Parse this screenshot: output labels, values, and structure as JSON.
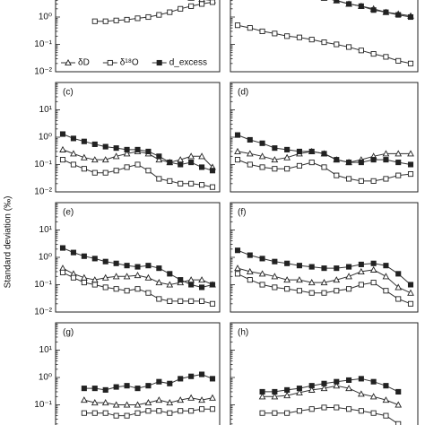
{
  "chart_data": [
    {
      "type": "line",
      "ylabel": "Standard deviation (‰)",
      "legend": true,
      "log_y": true,
      "ylim": [
        0.01,
        100
      ],
      "yticks": [
        {
          "value": 0.01,
          "label": "10⁻²"
        },
        {
          "value": 0.1,
          "label": "10⁻¹"
        },
        {
          "value": 1,
          "label": "10⁰"
        }
      ],
      "categories": [
        null,
        null,
        null,
        null,
        null,
        null,
        null,
        null,
        null,
        null,
        null,
        null,
        null,
        null,
        null
      ],
      "series": [
        {
          "name": "δD",
          "color": "#222",
          "marker": "triangle",
          "values": [
            null,
            null,
            null,
            null,
            null,
            null,
            null,
            null,
            null,
            null,
            null,
            null,
            5,
            4.5,
            4
          ]
        },
        {
          "name": "δ¹⁸O",
          "color": "#222",
          "marker": "open-square",
          "values": [
            null,
            null,
            null,
            0.7,
            0.7,
            0.75,
            0.8,
            0.9,
            1,
            1.2,
            1.5,
            2,
            2.5,
            3,
            3.5
          ]
        },
        {
          "name": "d_excess",
          "color": "#222",
          "marker": "filled-square",
          "values": [
            null,
            null,
            null,
            null,
            null,
            null,
            null,
            null,
            null,
            null,
            null,
            null,
            null,
            null,
            null
          ]
        }
      ]
    },
    {
      "type": "line",
      "log_y": true,
      "ylim": [
        0.01,
        100
      ],
      "yticks": [
        0.01,
        0.1,
        1
      ],
      "categories": [
        null,
        null,
        null,
        null,
        null,
        null,
        null,
        null,
        null,
        null,
        null,
        null,
        null,
        null,
        null
      ],
      "series": [
        {
          "name": "δD",
          "color": "#222",
          "marker": "triangle",
          "values": [
            null,
            null,
            null,
            null,
            null,
            null,
            8,
            5,
            4,
            3,
            2.5,
            2,
            1.5,
            1.3,
            1.1
          ]
        },
        {
          "name": "δ¹⁸O",
          "color": "#222",
          "marker": "open-square",
          "values": [
            0.5,
            0.4,
            0.3,
            0.25,
            0.2,
            0.18,
            0.15,
            0.12,
            0.1,
            0.08,
            0.06,
            0.045,
            0.035,
            0.025,
            0.02
          ]
        },
        {
          "name": "d_excess",
          "color": "#222",
          "marker": "filled-square",
          "values": [
            null,
            null,
            null,
            null,
            null,
            null,
            7,
            5,
            4,
            3,
            2.5,
            1.8,
            1.5,
            1.2,
            1
          ]
        }
      ]
    },
    {
      "type": "line",
      "label": "(c)",
      "log_y": true,
      "ylim": [
        0.01,
        100
      ],
      "yticks": [
        {
          "value": 0.01,
          "label": "10⁻²"
        },
        {
          "value": 0.1,
          "label": "10⁻¹"
        },
        {
          "value": 1,
          "label": "10⁰"
        },
        {
          "value": 10,
          "label": "10¹"
        }
      ],
      "categories": [
        null,
        null,
        null,
        null,
        null,
        null,
        null,
        null,
        null,
        null,
        null,
        null,
        null,
        null,
        null
      ],
      "series": [
        {
          "name": "δD",
          "color": "#222",
          "marker": "triangle",
          "values": [
            0.35,
            0.25,
            0.18,
            0.15,
            0.15,
            0.2,
            0.25,
            0.3,
            0.25,
            0.15,
            0.12,
            0.15,
            0.2,
            0.2,
            0.08
          ]
        },
        {
          "name": "δ¹⁸O",
          "color": "#222",
          "marker": "open-square",
          "values": [
            0.15,
            0.1,
            0.07,
            0.05,
            0.05,
            0.06,
            0.08,
            0.1,
            0.06,
            0.03,
            0.025,
            0.02,
            0.02,
            0.018,
            0.015
          ]
        },
        {
          "name": "d_excess",
          "color": "#222",
          "marker": "filled-square",
          "values": [
            1.3,
            0.9,
            0.7,
            0.55,
            0.45,
            0.4,
            0.35,
            0.35,
            0.3,
            0.2,
            0.12,
            0.1,
            0.12,
            0.08,
            0.06
          ]
        }
      ]
    },
    {
      "type": "line",
      "label": "(d)",
      "log_y": true,
      "ylim": [
        0.01,
        100
      ],
      "yticks": [
        0.01,
        0.1,
        1,
        10
      ],
      "categories": [
        null,
        null,
        null,
        null,
        null,
        null,
        null,
        null,
        null,
        null,
        null,
        null,
        null,
        null,
        null
      ],
      "series": [
        {
          "name": "δD",
          "color": "#222",
          "marker": "triangle",
          "values": [
            0.3,
            0.25,
            0.2,
            0.15,
            0.18,
            0.25,
            0.3,
            0.25,
            0.15,
            0.12,
            0.15,
            0.2,
            0.25,
            0.25,
            0.25
          ]
        },
        {
          "name": "δ¹⁸O",
          "color": "#222",
          "marker": "open-square",
          "values": [
            0.15,
            0.1,
            0.08,
            0.07,
            0.07,
            0.09,
            0.12,
            0.08,
            0.04,
            0.03,
            0.025,
            0.025,
            0.03,
            0.04,
            0.045
          ]
        },
        {
          "name": "d_excess",
          "color": "#222",
          "marker": "filled-square",
          "values": [
            1.2,
            0.8,
            0.6,
            0.4,
            0.35,
            0.3,
            0.3,
            0.25,
            0.15,
            0.12,
            0.12,
            0.15,
            0.15,
            0.12,
            0.1
          ]
        }
      ]
    },
    {
      "type": "line",
      "label": "(e)",
      "log_y": true,
      "ylim": [
        0.01,
        100
      ],
      "yticks": [
        {
          "value": 0.01,
          "label": "10⁻²"
        },
        {
          "value": 0.1,
          "label": "10⁻¹"
        },
        {
          "value": 1,
          "label": "10⁰"
        },
        {
          "value": 10,
          "label": "10¹"
        }
      ],
      "categories": [
        null,
        null,
        null,
        null,
        null,
        null,
        null,
        null,
        null,
        null,
        null,
        null,
        null,
        null,
        null
      ],
      "series": [
        {
          "name": "δD",
          "color": "#222",
          "marker": "triangle",
          "values": [
            0.4,
            0.25,
            0.18,
            0.15,
            0.18,
            0.2,
            0.2,
            0.22,
            0.18,
            0.12,
            0.1,
            0.12,
            0.15,
            0.15,
            0.1
          ]
        },
        {
          "name": "δ¹⁸O",
          "color": "#222",
          "marker": "open-square",
          "values": [
            0.28,
            0.18,
            0.12,
            0.1,
            0.08,
            0.07,
            0.06,
            0.07,
            0.05,
            0.03,
            0.025,
            0.025,
            0.025,
            0.025,
            0.02
          ]
        },
        {
          "name": "d_excess",
          "color": "#222",
          "marker": "filled-square",
          "values": [
            2.2,
            1.5,
            1.1,
            0.9,
            0.7,
            0.6,
            0.5,
            0.45,
            0.5,
            0.4,
            0.25,
            0.15,
            0.1,
            0.08,
            0.1
          ]
        }
      ]
    },
    {
      "type": "line",
      "label": "(f)",
      "log_y": true,
      "ylim": [
        0.01,
        100
      ],
      "yticks": [
        0.01,
        0.1,
        1,
        10
      ],
      "categories": [
        null,
        null,
        null,
        null,
        null,
        null,
        null,
        null,
        null,
        null,
        null,
        null,
        null,
        null,
        null
      ],
      "series": [
        {
          "name": "δD",
          "color": "#222",
          "marker": "triangle",
          "values": [
            0.4,
            0.3,
            0.25,
            0.2,
            0.15,
            0.15,
            0.12,
            0.12,
            0.15,
            0.2,
            0.3,
            0.35,
            0.2,
            0.08,
            0.05
          ]
        },
        {
          "name": "δ¹⁸O",
          "color": "#222",
          "marker": "open-square",
          "values": [
            0.25,
            0.15,
            0.1,
            0.08,
            0.07,
            0.06,
            0.05,
            0.05,
            0.06,
            0.07,
            0.1,
            0.12,
            0.06,
            0.03,
            0.02
          ]
        },
        {
          "name": "d_excess",
          "color": "#222",
          "marker": "filled-square",
          "values": [
            1.8,
            1.2,
            0.9,
            0.7,
            0.6,
            0.5,
            0.45,
            0.4,
            0.4,
            0.45,
            0.55,
            0.6,
            0.5,
            0.25,
            0.1
          ]
        }
      ]
    },
    {
      "type": "line",
      "label": "(g)",
      "log_y": true,
      "ylim": [
        0.01,
        100
      ],
      "yticks": [
        {
          "value": 0.1,
          "label": "10⁻¹"
        },
        {
          "value": 1,
          "label": "10⁰"
        },
        {
          "value": 10,
          "label": "10¹"
        }
      ],
      "categories": [
        null,
        null,
        null,
        null,
        null,
        null,
        null,
        null,
        null,
        null,
        null,
        null,
        null,
        null,
        null
      ],
      "series": [
        {
          "name": "δD",
          "color": "#222",
          "marker": "triangle",
          "values": [
            null,
            null,
            0.15,
            0.12,
            0.12,
            0.1,
            0.1,
            0.1,
            0.12,
            0.15,
            0.12,
            0.15,
            0.18,
            0.15,
            0.18
          ]
        },
        {
          "name": "δ¹⁸O",
          "color": "#222",
          "marker": "open-square",
          "values": [
            null,
            null,
            0.05,
            0.05,
            0.05,
            0.04,
            0.04,
            0.05,
            0.06,
            0.06,
            0.05,
            0.06,
            0.06,
            0.07,
            0.07
          ]
        },
        {
          "name": "d_excess",
          "color": "#222",
          "marker": "filled-square",
          "values": [
            null,
            null,
            0.4,
            0.4,
            0.35,
            0.45,
            0.5,
            0.4,
            0.5,
            0.7,
            0.6,
            0.9,
            1.1,
            1.3,
            0.9
          ]
        }
      ]
    },
    {
      "type": "line",
      "label": "(h)",
      "log_y": true,
      "ylim": [
        0.01,
        100
      ],
      "yticks": [
        0.1,
        1,
        10
      ],
      "categories": [
        null,
        null,
        null,
        null,
        null,
        null,
        null,
        null,
        null,
        null,
        null,
        null,
        null,
        null,
        null
      ],
      "series": [
        {
          "name": "δD",
          "color": "#222",
          "marker": "triangle",
          "values": [
            null,
            null,
            0.2,
            0.2,
            0.22,
            0.28,
            0.35,
            0.4,
            0.5,
            0.4,
            0.25,
            0.2,
            0.15,
            0.1,
            null
          ]
        },
        {
          "name": "δ¹⁸O",
          "color": "#222",
          "marker": "open-square",
          "values": [
            null,
            null,
            0.05,
            0.05,
            0.05,
            0.06,
            0.07,
            0.08,
            0.08,
            0.07,
            0.06,
            0.05,
            0.04,
            0.02,
            null
          ]
        },
        {
          "name": "d_excess",
          "color": "#222",
          "marker": "filled-square",
          "values": [
            null,
            null,
            0.3,
            0.3,
            0.35,
            0.4,
            0.5,
            0.6,
            0.7,
            0.8,
            0.9,
            0.7,
            0.5,
            0.3,
            null
          ]
        }
      ]
    }
  ]
}
